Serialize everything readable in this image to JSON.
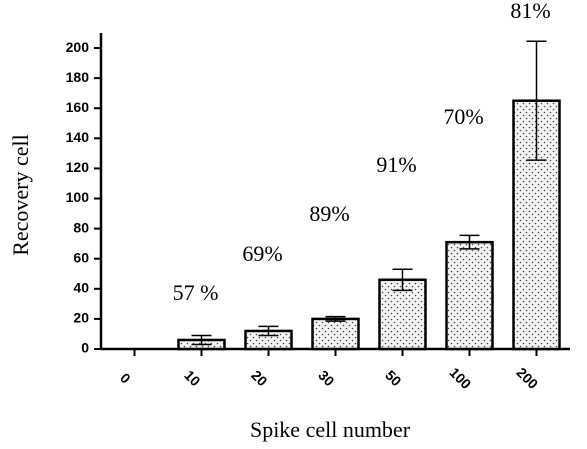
{
  "chart_data": {
    "type": "bar",
    "categories": [
      "0",
      "10",
      "20",
      "30",
      "50",
      "100",
      "200"
    ],
    "values": [
      0,
      6,
      12,
      20,
      46,
      71,
      165
    ],
    "errors": [
      0,
      3,
      3,
      1.5,
      7,
      4.5,
      39.5
    ],
    "annotations": [
      "57 %",
      "69%",
      "89%",
      "91%",
      "70%",
      "81%"
    ],
    "x_label": "Spike cell number",
    "y_label": "Recovery cell",
    "ylim": [
      0,
      210
    ],
    "yticks": [
      0,
      20,
      40,
      60,
      80,
      100,
      120,
      140,
      160,
      180,
      200
    ],
    "color": "#000000"
  }
}
